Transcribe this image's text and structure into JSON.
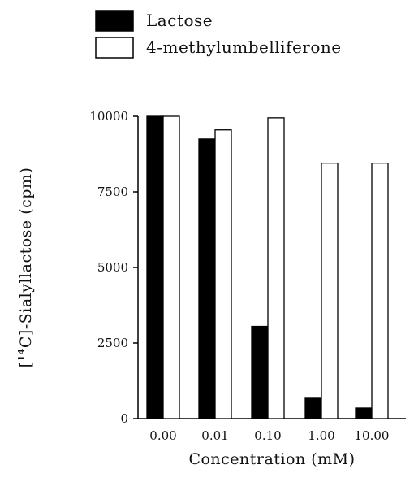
{
  "chart_data": {
    "type": "bar",
    "categories": [
      "0.00",
      "0.01",
      "0.10",
      "1.00",
      "10.00"
    ],
    "series": [
      {
        "name": "Lactose",
        "values": [
          10000,
          9250,
          3050,
          700,
          350
        ],
        "color": "#000000"
      },
      {
        "name": "4-methylumbelliferone",
        "values": [
          10000,
          9550,
          9950,
          8450,
          8450
        ],
        "color": "#ffffff"
      }
    ],
    "xlabel": "Concentration (mM)",
    "ylabel": {
      "bracket_open": "[",
      "superscript": "14",
      "element": "C",
      "rest": "]-Sialyllactose (cpm)"
    },
    "yticks": [
      0,
      2500,
      5000,
      7500,
      10000
    ],
    "ytick_labels": [
      "0",
      "2500",
      "5000",
      "7500",
      "10000"
    ],
    "ylim": [
      0,
      10000
    ],
    "legend_position": "top"
  }
}
